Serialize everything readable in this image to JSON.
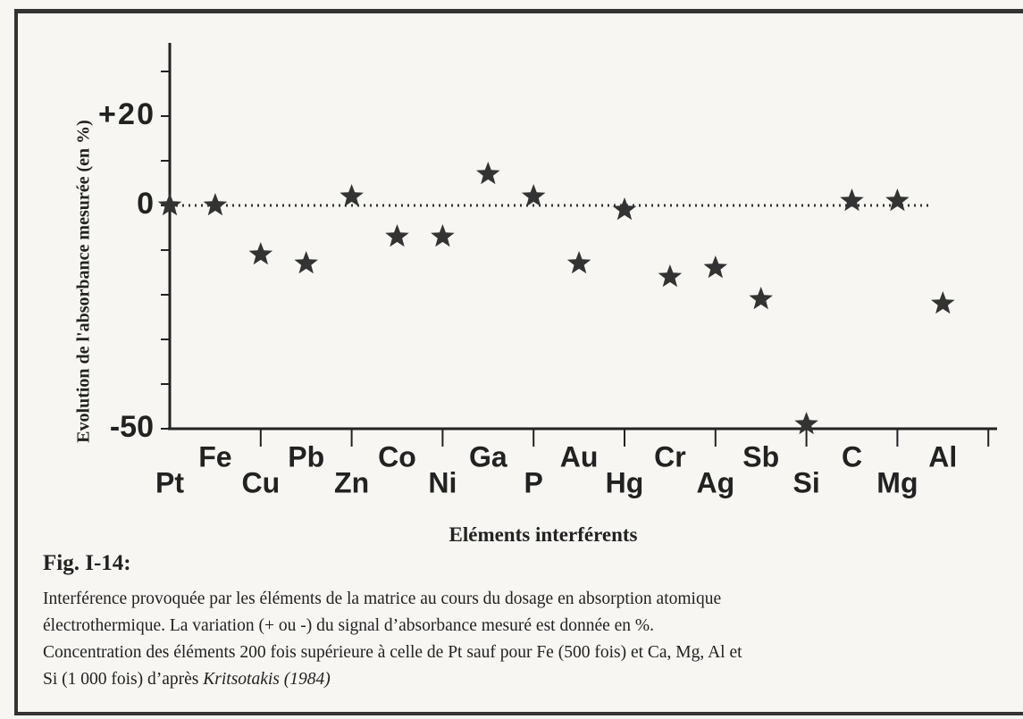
{
  "chart_data": {
    "type": "scatter",
    "y_label": "Evolution de l'absorbance mesurée (en %)",
    "x_label": "Eléments interférents",
    "categories": [
      "Pt",
      "Fe",
      "Cu",
      "Pb",
      "Zn",
      "Co",
      "Ni",
      "Ga",
      "P",
      "Au",
      "Hg",
      "Cr",
      "Ag",
      "Sb",
      "Si",
      "C",
      "Mg",
      "Al"
    ],
    "values": [
      0,
      0,
      -11,
      -13,
      2,
      -7,
      -7,
      7,
      2,
      -13,
      -1,
      -16,
      -14,
      -21,
      -49,
      1,
      1,
      -22
    ],
    "color": "#333333",
    "ylim": [
      -50,
      36
    ],
    "yticks": [
      -50,
      0,
      {
        "value": 20,
        "label": "+20"
      }
    ],
    "yminorticks": [
      -40,
      -30,
      -20,
      -10,
      10,
      30
    ]
  },
  "caption": {
    "figure": "Fig. I-14:",
    "lines": [
      "Interférence provoquée par les éléments de la matrice au cours du dosage en absorption atomique",
      "électrothermique. La variation (+ ou -) du signal d’absorbance mesuré est donnée en %.",
      "Concentration des éléments 200 fois supérieure à celle de Pt sauf pour Fe (500 fois)  et Ca, Mg, Al et"
    ],
    "last_line": "Si (1 000 fois) d’après ",
    "reference": "Kritsotakis (1984)"
  }
}
